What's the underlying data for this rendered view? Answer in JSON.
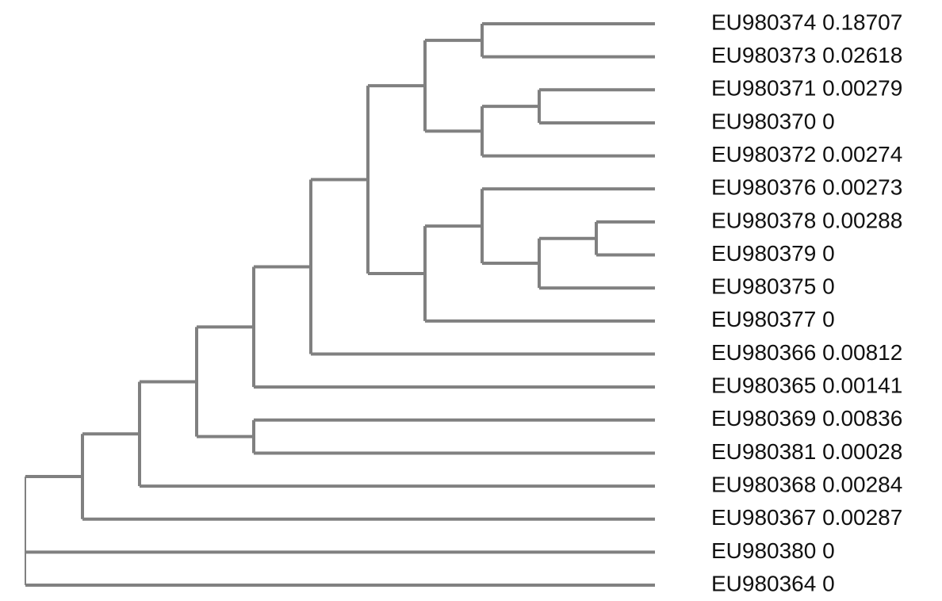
{
  "tree": {
    "leaves": [
      {
        "id": "EU980374",
        "value": "0.18707"
      },
      {
        "id": "EU980373",
        "value": "0.02618"
      },
      {
        "id": "EU980371",
        "value": "0.00279"
      },
      {
        "id": "EU980370",
        "value": "0"
      },
      {
        "id": "EU980372",
        "value": "0.00274"
      },
      {
        "id": "EU980376",
        "value": "0.00273"
      },
      {
        "id": "EU980378",
        "value": "0.00288"
      },
      {
        "id": "EU980379",
        "value": "0"
      },
      {
        "id": "EU980375",
        "value": "0"
      },
      {
        "id": "EU980377",
        "value": "0"
      },
      {
        "id": "EU980366",
        "value": "0.00812"
      },
      {
        "id": "EU980365",
        "value": "0.00141"
      },
      {
        "id": "EU980369",
        "value": "0.00836"
      },
      {
        "id": "EU980381",
        "value": "0.00028"
      },
      {
        "id": "EU980368",
        "value": "0.00284"
      },
      {
        "id": "EU980367",
        "value": "0.00287"
      },
      {
        "id": "EU980380",
        "value": "0"
      },
      {
        "id": "EU980364",
        "value": "0"
      }
    ],
    "topology": [
      "EU980364",
      "EU980380",
      [
        "EU980367",
        [
          "EU980368",
          [
            [
              "EU980365",
              [
                "EU980366",
                [
                  [
                    [
                      "EU980374",
                      "EU980373"
                    ],
                    [
                      [
                        "EU980371",
                        "EU980370"
                      ],
                      "EU980372"
                    ]
                  ],
                  [
                    [
                      "EU980376",
                      [
                        [
                          "EU980378",
                          "EU980379"
                        ],
                        "EU980375"
                      ]
                    ],
                    "EU980377"
                  ]
                ]
              ]
            ],
            [
              "EU980369",
              "EU980381"
            ]
          ]
        ]
      ]
    ],
    "branch_color": "#808080",
    "label_color": "#111111"
  }
}
